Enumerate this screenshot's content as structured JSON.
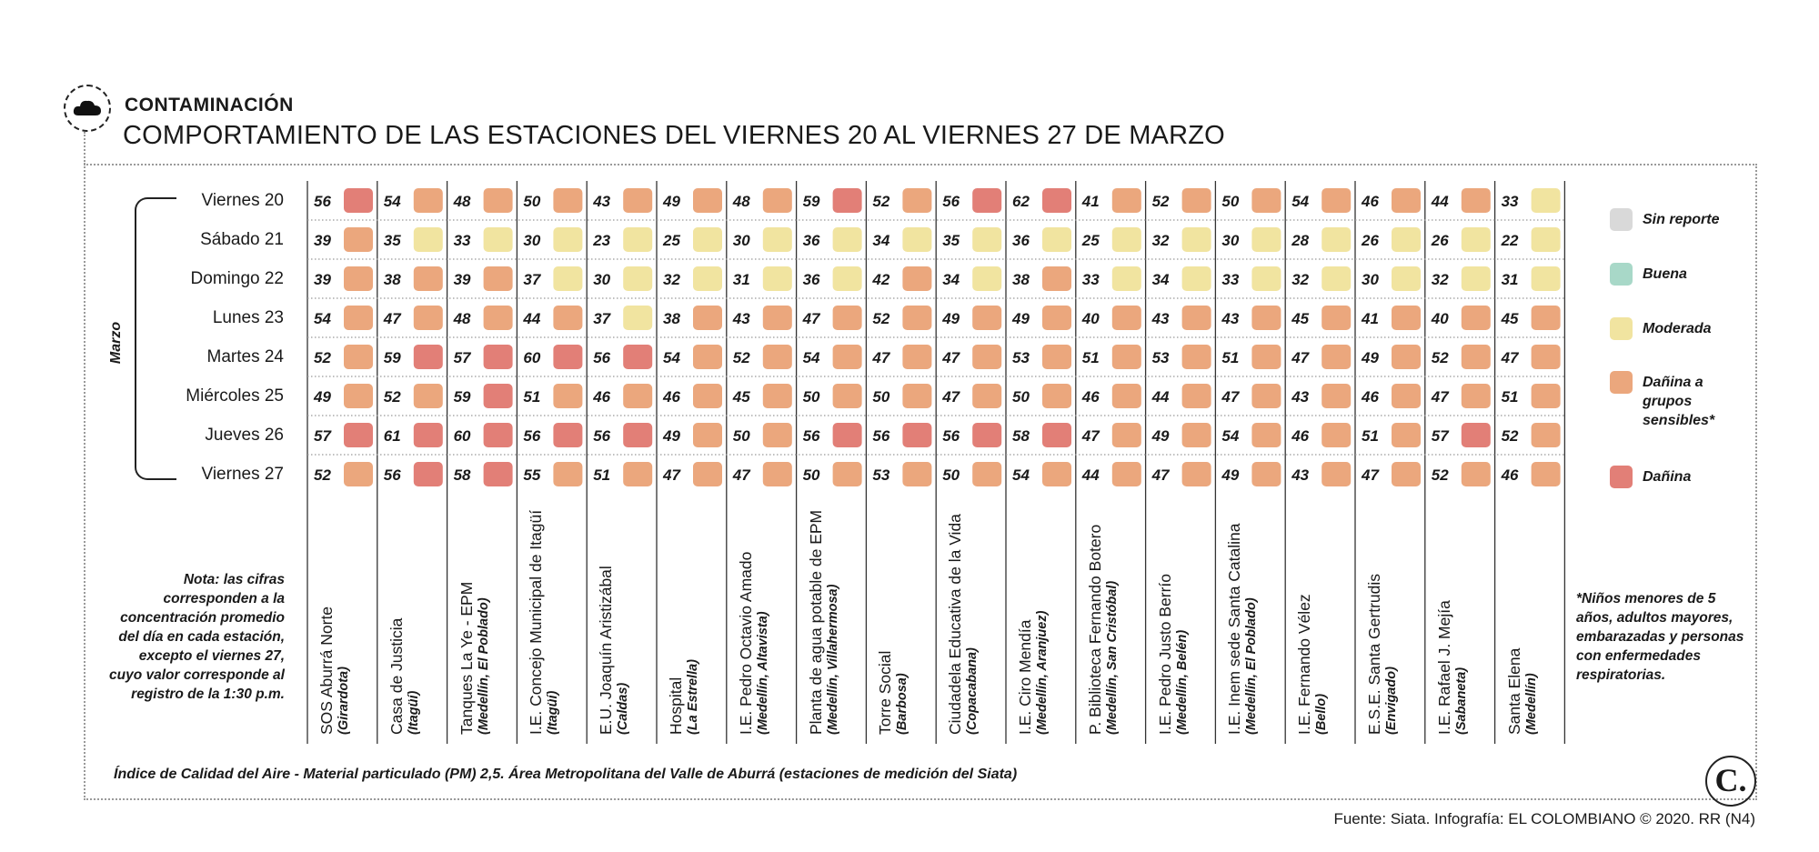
{
  "header": {
    "kicker": "CONTAMINACIÓN",
    "title": "COMPORTAMIENTO DE LAS ESTACIONES DEL VIERNES 20 AL VIERNES 27 DE MARZO"
  },
  "icons": {
    "title_icon": "smog-cloud-icon",
    "logo": "el-colombiano-logo"
  },
  "chart_data": {
    "type": "heatmap",
    "title": "COMPORTAMIENTO DE LAS ESTACIONES DEL VIERNES 20 AL VIERNES 27 DE MARZO",
    "row_group_label": "Marzo",
    "rows": [
      "Viernes 20",
      "Sábado 21",
      "Domingo 22",
      "Lunes 23",
      "Martes 24",
      "Miércoles 25",
      "Jueves 26",
      "Viernes 27"
    ],
    "stations": [
      {
        "name": "SOS Aburrá Norte",
        "location": "(Girardota)"
      },
      {
        "name": "Casa de Justicia",
        "location": "(Itagüí)"
      },
      {
        "name": "Tanques La Ye - EPM",
        "location": "(Medellín, El Poblado)"
      },
      {
        "name": "I.E. Concejo Municipal de Itagüí",
        "location": "(Itagüí)"
      },
      {
        "name": "E.U. Joaquín Aristizábal",
        "location": "(Caldas)"
      },
      {
        "name": "Hospital",
        "location": "(La Estrella)"
      },
      {
        "name": "I.E. Pedro Octavio Amado",
        "location": "(Medellín, Altavista)"
      },
      {
        "name": "Planta de agua potable de EPM",
        "location": "(Medellín, Villahermosa)"
      },
      {
        "name": "Torre Social",
        "location": "(Barbosa)"
      },
      {
        "name": "Ciudadela Educativa de la Vida",
        "location": "(Copacabana)"
      },
      {
        "name": "I.E. Ciro Mendía",
        "location": "(Medellín, Aranjuez)"
      },
      {
        "name": "P. Biblioteca Fernando Botero",
        "location": "(Medellín, San Cristóbal)"
      },
      {
        "name": "I.E. Pedro Justo Berrío",
        "location": "(Medellín, Belén)"
      },
      {
        "name": "I.E. Inem sede Santa Catalina",
        "location": "(Medellín, El Poblado)"
      },
      {
        "name": "I.E. Fernando Vélez",
        "location": "(Bello)"
      },
      {
        "name": "E.S.E. Santa Gertrudis",
        "location": "(Envigado)"
      },
      {
        "name": "I.E. Rafael J. Mejía",
        "location": "(Sabaneta)"
      },
      {
        "name": "Santa Elena",
        "location": "(Medellín)"
      }
    ],
    "values": [
      [
        56,
        54,
        48,
        50,
        43,
        49,
        48,
        59,
        52,
        56,
        62,
        41,
        52,
        50,
        54,
        46,
        44,
        33
      ],
      [
        39,
        35,
        33,
        30,
        23,
        25,
        30,
        36,
        34,
        35,
        36,
        25,
        32,
        30,
        28,
        26,
        26,
        22
      ],
      [
        39,
        38,
        39,
        37,
        30,
        32,
        31,
        36,
        42,
        34,
        38,
        33,
        34,
        33,
        32,
        30,
        32,
        31
      ],
      [
        54,
        47,
        48,
        44,
        37,
        38,
        43,
        47,
        52,
        49,
        49,
        40,
        43,
        43,
        45,
        41,
        40,
        45
      ],
      [
        52,
        59,
        57,
        60,
        56,
        54,
        52,
        54,
        47,
        47,
        53,
        51,
        53,
        51,
        47,
        49,
        52,
        47
      ],
      [
        49,
        52,
        59,
        51,
        46,
        46,
        45,
        50,
        50,
        47,
        50,
        46,
        44,
        47,
        43,
        46,
        47,
        51
      ],
      [
        57,
        61,
        60,
        56,
        56,
        49,
        50,
        56,
        56,
        56,
        58,
        47,
        49,
        54,
        46,
        51,
        57,
        52
      ],
      [
        52,
        56,
        58,
        55,
        51,
        47,
        47,
        50,
        53,
        50,
        54,
        44,
        47,
        49,
        43,
        47,
        52,
        46
      ]
    ],
    "categories_by_value": [
      {
        "name": "Moderada",
        "min": 13,
        "max": 37
      },
      {
        "name": "Dañina a grupos sensibles*",
        "min": 38,
        "max": 55
      },
      {
        "name": "Dañina",
        "min": 56,
        "max": 150
      }
    ],
    "legend": [
      {
        "label": "Sin reporte",
        "color": "#d9d9d9"
      },
      {
        "label": "Buena",
        "color": "#a8d8c8"
      },
      {
        "label": "Moderada",
        "color": "#f1e4a0"
      },
      {
        "label": "Dañina a grupos sensibles*",
        "color": "#eba77d"
      },
      {
        "label": "Dañina",
        "color": "#e27f77"
      }
    ],
    "legend_position": "right"
  },
  "note": "Nota: las cifras corresponden a la concentración promedio del día en cada estación, excepto el viernes 27, cuyo valor corresponde al registro de la 1:30 p.m.",
  "footnote": "*Niños menores de 5 años, adultos mayores, embarazadas y personas con enfermedades respiratorias.",
  "index_note": "Índice de Calidad del Aire - Material particulado (PM) 2,5. Área Metropolitana del Valle de Aburrá (estaciones de medición del Siata)",
  "source": "Fuente: Siata. Infografía: EL COLOMBIANO © 2020. RR (N4)",
  "logo_letter": "C."
}
